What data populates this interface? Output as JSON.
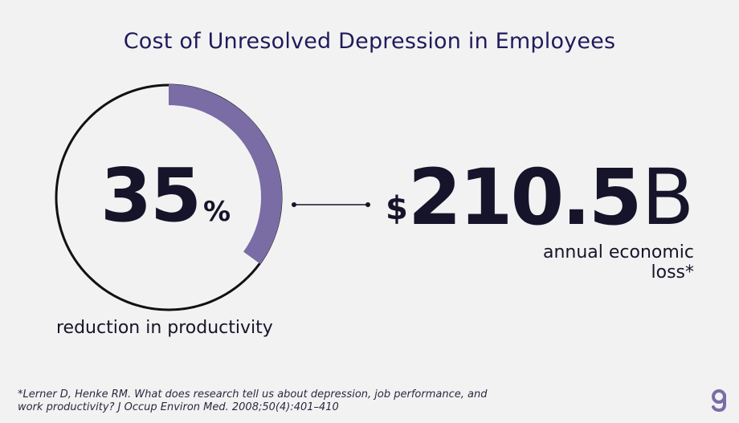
{
  "title": "Cost of Unresolved Depression in Employees",
  "stat_left": {
    "value": "35",
    "unit": "%",
    "label": "reduction in productivity",
    "percent": 35,
    "ring_color": "#7a6da6"
  },
  "stat_right": {
    "currency": "$",
    "value": "210.5",
    "unit": "B",
    "label": "annual economic loss*"
  },
  "footnote": "*Lerner D, Henke RM. What does research tell us about depression, job performance, and work productivity? J Occup Environ Med. 2008;50(4):401–410",
  "logo_icon": "g-logo-icon",
  "colors": {
    "title": "#1f1b5c",
    "text": "#16142a",
    "accent": "#7a6da6",
    "background": "#f3f2f2"
  }
}
